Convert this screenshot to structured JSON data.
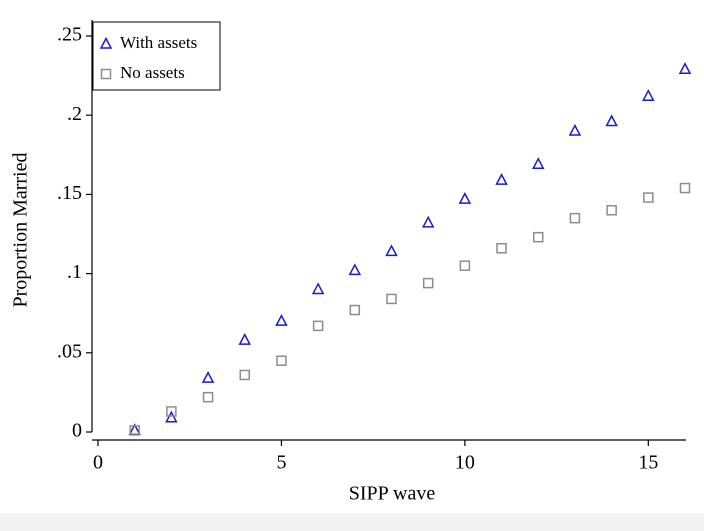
{
  "chart_data": {
    "type": "scatter",
    "x_label": "SIPP wave",
    "y_label": "Proportion Married",
    "x": [
      1,
      2,
      3,
      4,
      5,
      6,
      7,
      8,
      9,
      10,
      11,
      12,
      13,
      14,
      15,
      16
    ],
    "series": [
      {
        "name": "With assets",
        "color": "#1a1ad0",
        "marker": "triangle",
        "values": [
          0.001,
          0.009,
          0.034,
          0.058,
          0.07,
          0.09,
          0.102,
          0.114,
          0.132,
          0.147,
          0.159,
          0.169,
          0.19,
          0.196,
          0.212,
          0.229
        ]
      },
      {
        "name": "No assets",
        "color": "#8c8c8c",
        "marker": "square",
        "values": [
          0.001,
          0.013,
          0.022,
          0.036,
          0.045,
          0.067,
          0.077,
          0.084,
          0.094,
          0.105,
          0.116,
          0.123,
          0.135,
          0.14,
          0.148,
          0.154
        ]
      }
    ],
    "xlim": [
      0,
      16
    ],
    "xticks": [
      0,
      5,
      10,
      15
    ],
    "ylim": [
      0,
      0.25
    ],
    "yticks": [
      0,
      {
        "value": 0.05,
        "label": ".05"
      },
      {
        "value": 0.1,
        "label": ".1"
      },
      {
        "value": 0.15,
        "label": ".15"
      },
      {
        "value": 0.2,
        "label": ".2"
      },
      {
        "value": 0.25,
        "label": ".25"
      }
    ],
    "legend": "top-left"
  }
}
